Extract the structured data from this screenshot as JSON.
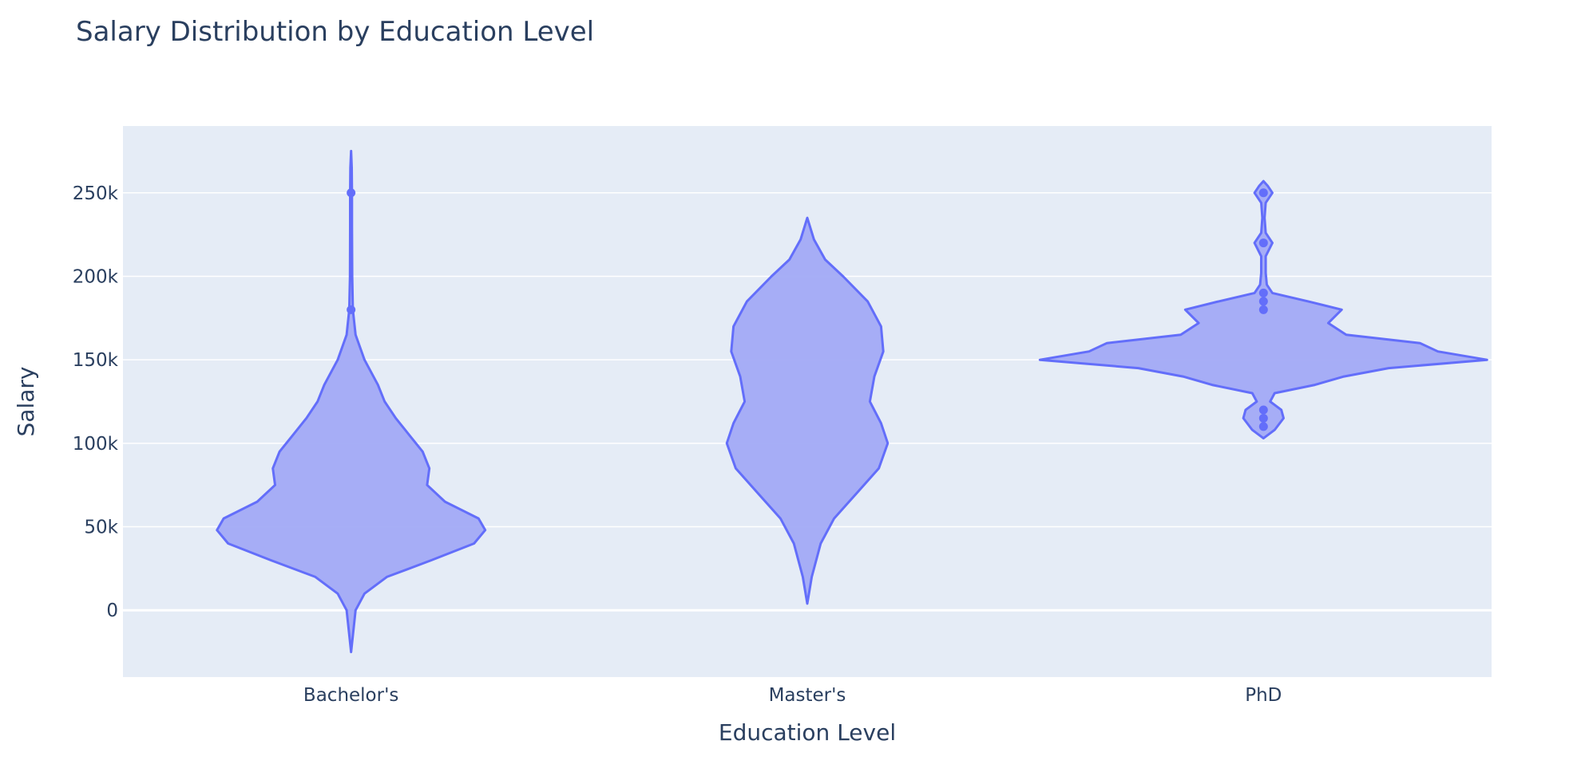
{
  "chart_data": {
    "type": "violin",
    "title": "Salary Distribution by Education Level",
    "xlabel": "Education Level",
    "ylabel": "Salary",
    "ylim": [
      -40000,
      290000
    ],
    "yticks": [
      0,
      50000,
      100000,
      150000,
      200000,
      250000
    ],
    "ytick_labels": [
      "0",
      "50k",
      "100k",
      "150k",
      "200k",
      "250k"
    ],
    "categories": [
      "Bachelor's",
      "Master's",
      "PhD"
    ],
    "grid": true,
    "colors": {
      "fill": "#a2aaf6",
      "line": "#636efa",
      "plot_bg": "#e5ecf6",
      "grid": "#ffffff",
      "text": "#2a3f5f"
    },
    "series": [
      {
        "category": "Bachelor's",
        "density": [
          [
            -25000,
            0.0
          ],
          [
            0,
            0.02
          ],
          [
            10000,
            0.06
          ],
          [
            20000,
            0.16
          ],
          [
            30000,
            0.36
          ],
          [
            40000,
            0.55
          ],
          [
            48000,
            0.6
          ],
          [
            55000,
            0.57
          ],
          [
            65000,
            0.42
          ],
          [
            75000,
            0.34
          ],
          [
            85000,
            0.35
          ],
          [
            95000,
            0.32
          ],
          [
            105000,
            0.26
          ],
          [
            115000,
            0.2
          ],
          [
            125000,
            0.15
          ],
          [
            135000,
            0.12
          ],
          [
            150000,
            0.06
          ],
          [
            165000,
            0.02
          ],
          [
            180000,
            0.008
          ],
          [
            200000,
            0.005
          ],
          [
            230000,
            0.004
          ],
          [
            250000,
            0.004
          ],
          [
            265000,
            0.003
          ],
          [
            275000,
            0.0
          ]
        ],
        "outliers": [
          180000,
          250000
        ]
      },
      {
        "category": "Master's",
        "density": [
          [
            4000,
            0.0
          ],
          [
            20000,
            0.02
          ],
          [
            40000,
            0.06
          ],
          [
            55000,
            0.12
          ],
          [
            70000,
            0.22
          ],
          [
            85000,
            0.32
          ],
          [
            100000,
            0.36
          ],
          [
            112000,
            0.33
          ],
          [
            125000,
            0.28
          ],
          [
            140000,
            0.3
          ],
          [
            155000,
            0.34
          ],
          [
            170000,
            0.33
          ],
          [
            185000,
            0.27
          ],
          [
            200000,
            0.16
          ],
          [
            210000,
            0.08
          ],
          [
            222000,
            0.03
          ],
          [
            235000,
            0.0
          ]
        ],
        "outliers": []
      },
      {
        "category": "PhD",
        "density": [
          [
            103000,
            0.0
          ],
          [
            108000,
            0.05
          ],
          [
            115000,
            0.09
          ],
          [
            120000,
            0.08
          ],
          [
            125000,
            0.03
          ],
          [
            130000,
            0.05
          ],
          [
            135000,
            0.23
          ],
          [
            140000,
            0.36
          ],
          [
            145000,
            0.56
          ],
          [
            150000,
            1.0
          ],
          [
            155000,
            0.78
          ],
          [
            160000,
            0.7
          ],
          [
            165000,
            0.37
          ],
          [
            172000,
            0.29
          ],
          [
            180000,
            0.35
          ],
          [
            185000,
            0.2
          ],
          [
            190000,
            0.04
          ],
          [
            195000,
            0.015
          ],
          [
            202000,
            0.01
          ],
          [
            212000,
            0.01
          ],
          [
            220000,
            0.04
          ],
          [
            226000,
            0.01
          ],
          [
            235000,
            0.005
          ],
          [
            244000,
            0.01
          ],
          [
            250000,
            0.04
          ],
          [
            254000,
            0.02
          ],
          [
            257000,
            0.0
          ]
        ],
        "outliers": [
          110000,
          115000,
          120000,
          180000,
          185000,
          190000,
          220000,
          250000
        ]
      }
    ]
  }
}
